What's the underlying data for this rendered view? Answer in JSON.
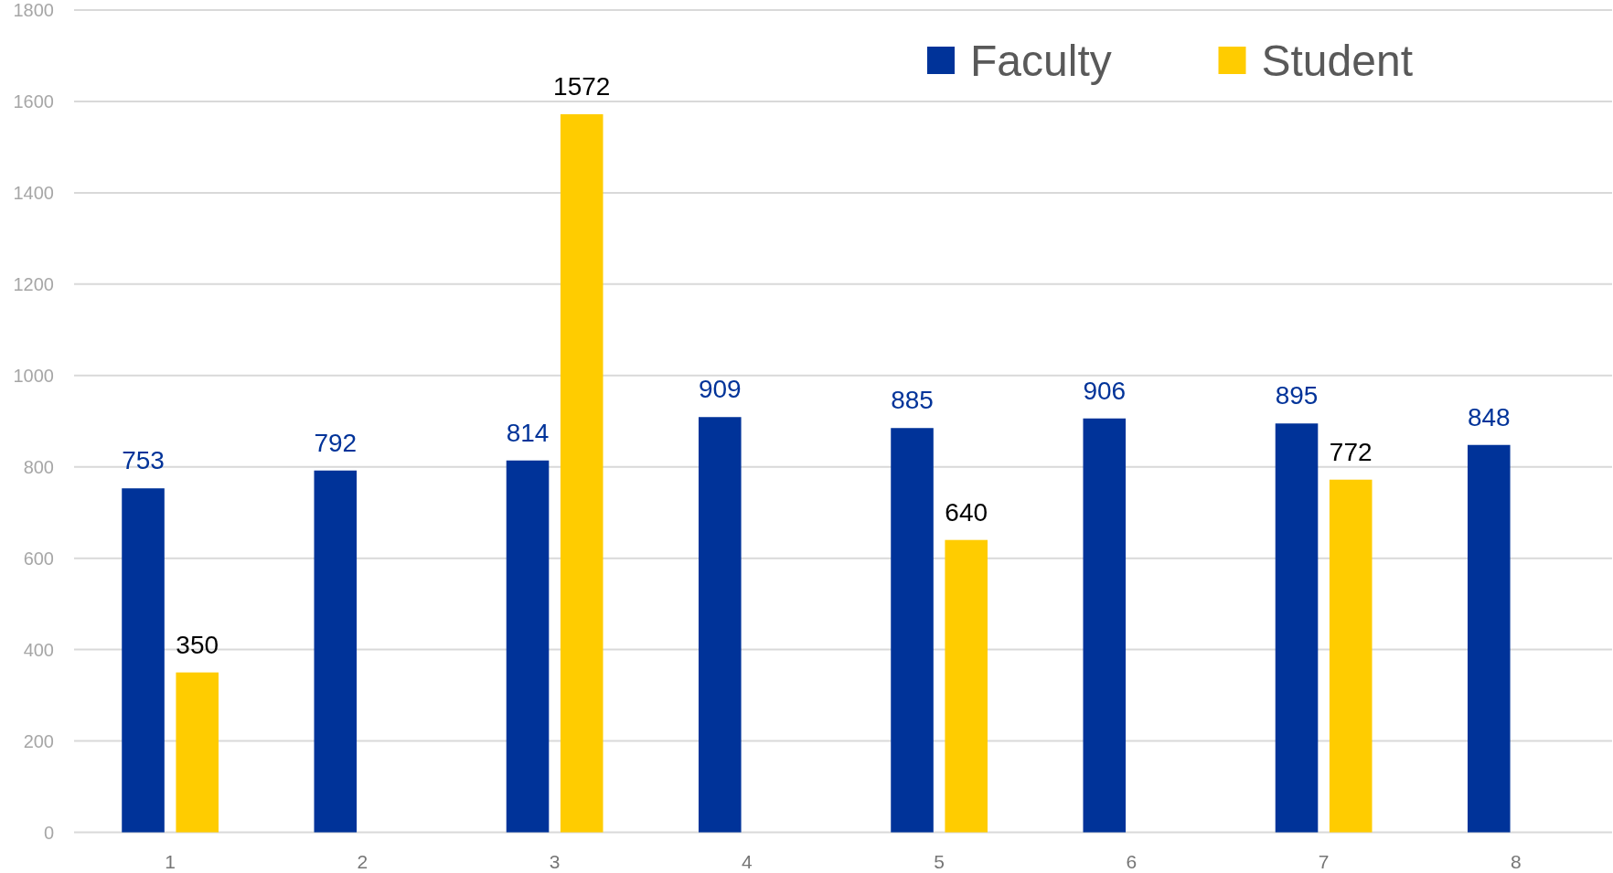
{
  "chart_data": {
    "type": "bar",
    "categories": [
      "1",
      "2",
      "3",
      "4",
      "5",
      "6",
      "7",
      "8"
    ],
    "series": [
      {
        "name": "Faculty",
        "color": "#003399",
        "values": [
          753,
          792,
          814,
          909,
          885,
          906,
          895,
          848
        ]
      },
      {
        "name": "Student",
        "color": "#ffcc00",
        "values": [
          350,
          null,
          1572,
          null,
          640,
          null,
          772,
          null
        ]
      }
    ],
    "ylim": [
      0,
      1800
    ],
    "yticks": [
      0,
      200,
      400,
      600,
      800,
      1000,
      1200,
      1400,
      1600,
      1800
    ],
    "grid": "y",
    "legend": "top right",
    "data_labels": true
  }
}
